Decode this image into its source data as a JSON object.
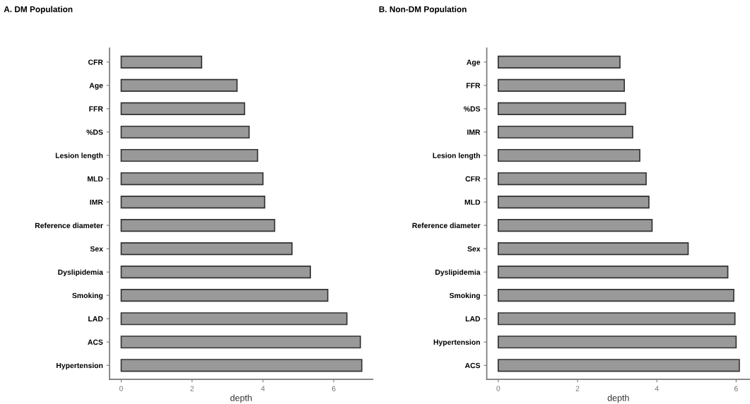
{
  "chart_data": [
    {
      "type": "bar",
      "orientation": "horizontal",
      "title": "A. DM Population",
      "xlabel": "depth",
      "categories": [
        "CFR",
        "Age",
        "FFR",
        "%DS",
        "Lesion length",
        "MLD",
        "IMR",
        "Reference diameter",
        "Sex",
        "Dyslipidemia",
        "Smoking",
        "LAD",
        "ACS",
        "Hypertension"
      ],
      "values": [
        2.27,
        3.27,
        3.48,
        3.61,
        3.85,
        4.0,
        4.05,
        4.33,
        4.82,
        5.34,
        5.83,
        6.37,
        6.75,
        6.79
      ],
      "color": "#999999",
      "xlim": [
        -0.33,
        7.1
      ],
      "xticks": [
        0,
        2,
        4,
        6
      ],
      "grid": false
    },
    {
      "type": "bar",
      "orientation": "horizontal",
      "title": "B. Non-DM Population",
      "xlabel": "depth",
      "categories": [
        "Age",
        "FFR",
        "%DS",
        "IMR",
        "Lesion length",
        "CFR",
        "MLD",
        "Reference diameter",
        "Sex",
        "Dyslipidemia",
        "Smoking",
        "LAD",
        "Hypertension",
        "ACS"
      ],
      "values": [
        3.07,
        3.18,
        3.21,
        3.39,
        3.57,
        3.73,
        3.8,
        3.88,
        4.79,
        5.79,
        5.94,
        5.97,
        6.0,
        6.08
      ],
      "color": "#999999",
      "xlim": [
        -0.29,
        6.35
      ],
      "xticks": [
        0,
        2,
        4,
        6
      ],
      "grid": false
    }
  ]
}
